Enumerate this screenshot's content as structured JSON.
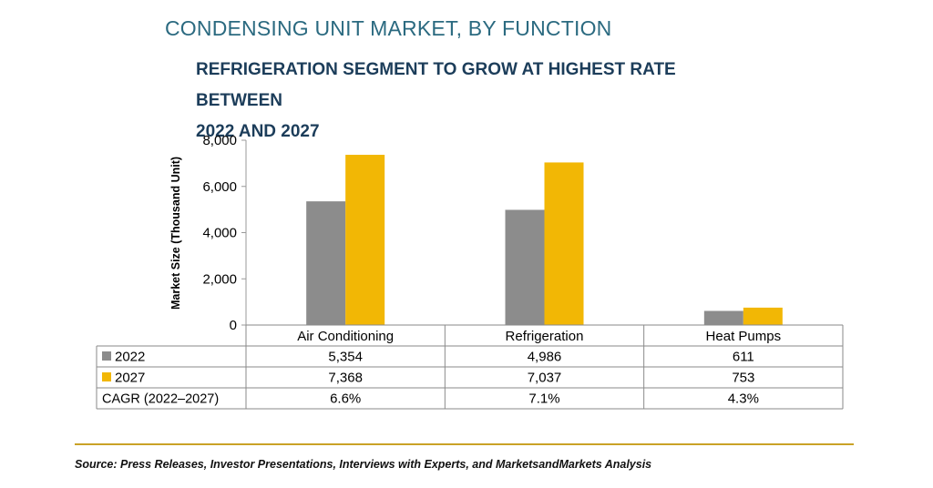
{
  "title": "CONDENSING UNIT MARKET, BY FUNCTION",
  "subtitle_line1": "REFRIGERATION SEGMENT TO GROW AT HIGHEST RATE BETWEEN",
  "subtitle_line2": "2022 AND 2027",
  "source": "Source: Press Releases, Investor Presentations, Interviews with Experts, and MarketsandMarkets Analysis",
  "chart_data": {
    "type": "bar",
    "categories": [
      "Air Conditioning",
      "Refrigeration",
      "Heat Pumps"
    ],
    "series": [
      {
        "name": "2022",
        "values": [
          5354,
          4986,
          611
        ],
        "labels": [
          "5,354",
          "4,986",
          "611"
        ],
        "color": "#8c8c8c"
      },
      {
        "name": "2027",
        "values": [
          7368,
          7037,
          753
        ],
        "labels": [
          "7,368",
          "7,037",
          "753"
        ],
        "color": "#f2b705"
      }
    ],
    "cagr": {
      "name": "CAGR (2022–2027)",
      "values": [
        "6.6%",
        "7.1%",
        "4.3%"
      ]
    },
    "ylabel": "Market Size (Thousand Unit)",
    "ylim": [
      0,
      8000
    ],
    "yticks": [
      0,
      2000,
      4000,
      6000,
      8000
    ],
    "ytick_labels": [
      "0",
      "2,000",
      "4,000",
      "6,000",
      "8,000"
    ],
    "grid": false,
    "legend": "data-table"
  }
}
